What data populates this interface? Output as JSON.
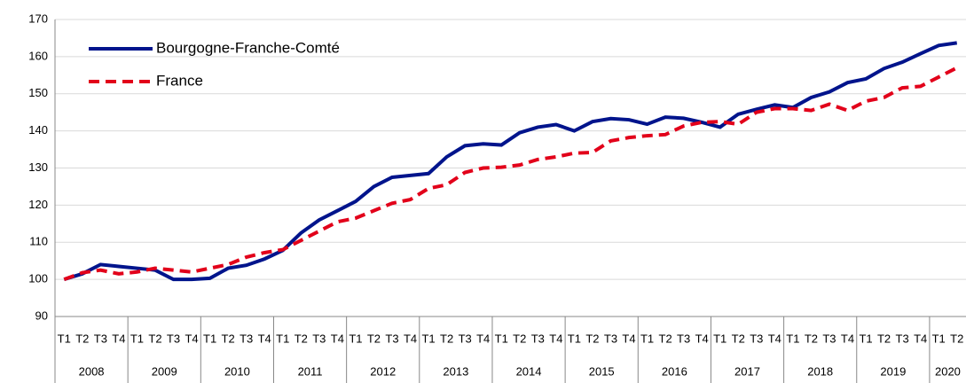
{
  "chart_data": {
    "type": "line",
    "categories": [
      "T1",
      "T2",
      "T3",
      "T4",
      "T1",
      "T2",
      "T3",
      "T4",
      "T1",
      "T2",
      "T3",
      "T4",
      "T1",
      "T2",
      "T3",
      "T4",
      "T1",
      "T2",
      "T3",
      "T4",
      "T1",
      "T2",
      "T3",
      "T4",
      "T1",
      "T2",
      "T3",
      "T4",
      "T1",
      "T2",
      "T3",
      "T4",
      "T1",
      "T2",
      "T3",
      "T4",
      "T1",
      "T2",
      "T3",
      "T4",
      "T1",
      "T2",
      "T3",
      "T4",
      "T1",
      "T2",
      "T3",
      "T4",
      "T1",
      "T2"
    ],
    "year_labels": [
      "2008",
      "2009",
      "2010",
      "2011",
      "2012",
      "2013",
      "2014",
      "2015",
      "2016",
      "2017",
      "2018",
      "2019",
      "2020"
    ],
    "series": [
      {
        "name": "Bourgogne-Franche-Comté",
        "color": "#00148c",
        "dash": false,
        "values": [
          100,
          101.5,
          104,
          103.5,
          103,
          102.5,
          100,
          100,
          100.3,
          103,
          103.8,
          105.5,
          107.8,
          112.5,
          116,
          118.5,
          121,
          125,
          127.5,
          128,
          128.5,
          133,
          136,
          136.5,
          136.2,
          139.5,
          141,
          141.7,
          140,
          142.5,
          143.3,
          143,
          141.8,
          143.7,
          143.4,
          142.3,
          141,
          144.5,
          145.8,
          147,
          146.3,
          149,
          150.5,
          153,
          154,
          156.8,
          158.5,
          160.8,
          163,
          163.7
        ]
      },
      {
        "name": "France",
        "color": "#e2001a",
        "dash": true,
        "values": [
          100,
          101.8,
          102.5,
          101.5,
          102,
          103,
          102.5,
          102,
          103,
          104,
          106,
          107.2,
          108,
          110.5,
          113,
          115.5,
          116.5,
          118.5,
          120.5,
          121.5,
          124.5,
          125.5,
          128.8,
          130,
          130.2,
          130.8,
          132.3,
          133,
          134,
          134.2,
          137.3,
          138.2,
          138.7,
          139,
          141.3,
          142.3,
          142.5,
          141.8,
          145,
          146,
          146,
          145.5,
          147.2,
          145.5,
          148,
          149,
          151.6,
          152,
          154.5,
          157
        ]
      }
    ],
    "ylim": [
      90,
      170
    ],
    "yticks": [
      90,
      100,
      110,
      120,
      130,
      140,
      150,
      160,
      170
    ],
    "grid": true,
    "legend": "top-left"
  }
}
